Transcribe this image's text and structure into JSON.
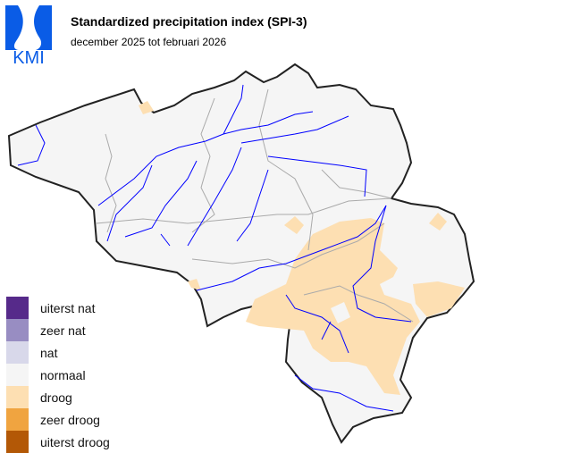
{
  "logo": {
    "text": "KMI",
    "color": "#0a5ce6"
  },
  "header": {
    "title": "Standardized precipitation index (SPI-3)",
    "subtitle": "december 2025 tot februari 2026"
  },
  "map": {
    "land_color": "#f5f5f5",
    "border_color": "#222222",
    "province_color": "#aaaaaa",
    "river_color": "#0000ff",
    "dominant_class": "normaal",
    "highlighted_class": "droog",
    "dry_region": "east/southeast (Ardennes)"
  },
  "legend": {
    "items": [
      {
        "label": "uiterst nat",
        "color": "#562a8a"
      },
      {
        "label": "zeer nat",
        "color": "#988dc2"
      },
      {
        "label": "nat",
        "color": "#d8d8ea"
      },
      {
        "label": "normaal",
        "color": "#f5f5f5"
      },
      {
        "label": "droog",
        "color": "#fddfb2"
      },
      {
        "label": "zeer droog",
        "color": "#f0a440"
      },
      {
        "label": "uiterst droog",
        "color": "#b35806"
      }
    ]
  }
}
